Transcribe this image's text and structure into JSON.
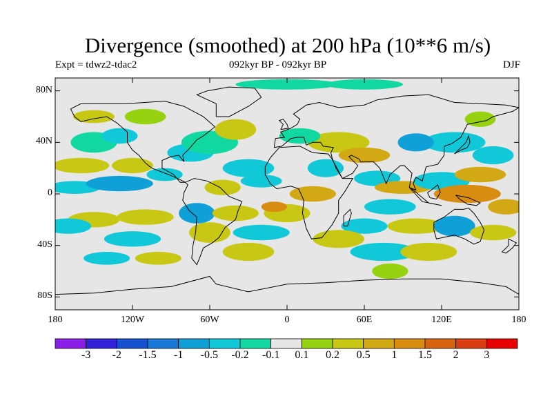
{
  "title": "Divergence (smoothed) at 200 hPa (10**6 m/s)",
  "experiment": "Expt = tdwz2-tdac2",
  "period": "092kyr BP - 092kyr BP",
  "season": "DJF",
  "y_ticks": [
    {
      "label": "80N",
      "lat": 80
    },
    {
      "label": "40N",
      "lat": 40
    },
    {
      "label": "0",
      "lat": 0
    },
    {
      "label": "40S",
      "lat": -40
    },
    {
      "label": "80S",
      "lat": -80
    }
  ],
  "x_ticks": [
    {
      "label": "180",
      "lon": -180
    },
    {
      "label": "120W",
      "lon": -120
    },
    {
      "label": "60W",
      "lon": -60
    },
    {
      "label": "0",
      "lon": 0
    },
    {
      "label": "60E",
      "lon": 60
    },
    {
      "label": "120E",
      "lon": 120
    },
    {
      "label": "180",
      "lon": 180
    }
  ],
  "colorbar": {
    "colors": [
      "#8a1ee6",
      "#3020d8",
      "#1450d0",
      "#1878d8",
      "#10a0d8",
      "#10c8d8",
      "#10d8a0",
      "#e6e6e6",
      "#96d210",
      "#c8c814",
      "#d2a814",
      "#d88c10",
      "#d86410",
      "#d83c10",
      "#e60000"
    ],
    "labels": [
      "-3",
      "-2",
      "-1.5",
      "-1",
      "-0.5",
      "-0.2",
      "-0.1",
      "0.1",
      "0.2",
      "0.5",
      "1",
      "1.5",
      "2",
      "3"
    ]
  },
  "colors": {
    "background": "#e6e6e6",
    "coast": "#000000"
  }
}
